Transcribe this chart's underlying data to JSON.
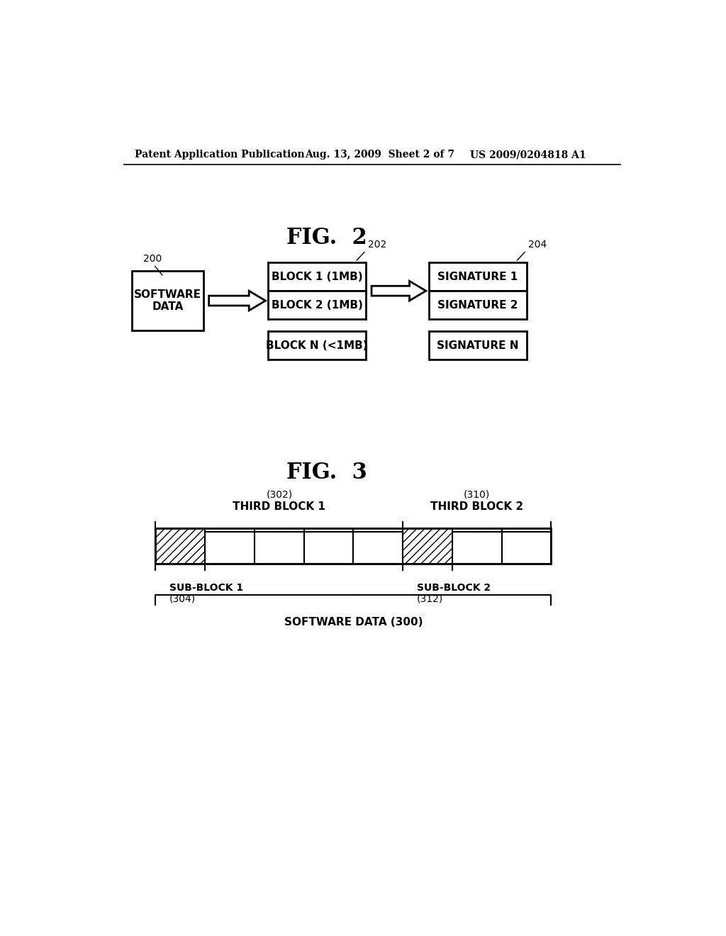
{
  "bg_color": "#ffffff",
  "header_left": "Patent Application Publication",
  "header_mid": "Aug. 13, 2009  Sheet 2 of 7",
  "header_right": "US 2009/0204818 A1",
  "fig2_title": "FIG.  2",
  "fig3_title": "FIG.  3",
  "fig2": {
    "box200_label": "SOFTWARE\nDATA",
    "box200_ref": "200",
    "box202_ref": "202",
    "box202_rows": [
      "BLOCK 1 (1MB)",
      "BLOCK 2 (1MB)"
    ],
    "box202_bottom": "BLOCK N (<1MB)",
    "box204_ref": "204",
    "box204_rows": [
      "SIGNATURE 1",
      "SIGNATURE 2"
    ],
    "box204_bottom": "SIGNATURE N"
  },
  "fig3": {
    "third_block1_label": "THIRD BLOCK 1",
    "third_block1_ref": "(302)",
    "third_block2_label": "THIRD BLOCK 2",
    "third_block2_ref": "(310)",
    "sub_block1_label": "SUB-BLOCK 1",
    "sub_block1_ref": "(304)",
    "sub_block2_label": "SUB-BLOCK 2",
    "sub_block2_ref": "(312)",
    "software_data_label": "SOFTWARE DATA (300)",
    "num_cells": 8,
    "hatched_cells": [
      0,
      5
    ]
  }
}
